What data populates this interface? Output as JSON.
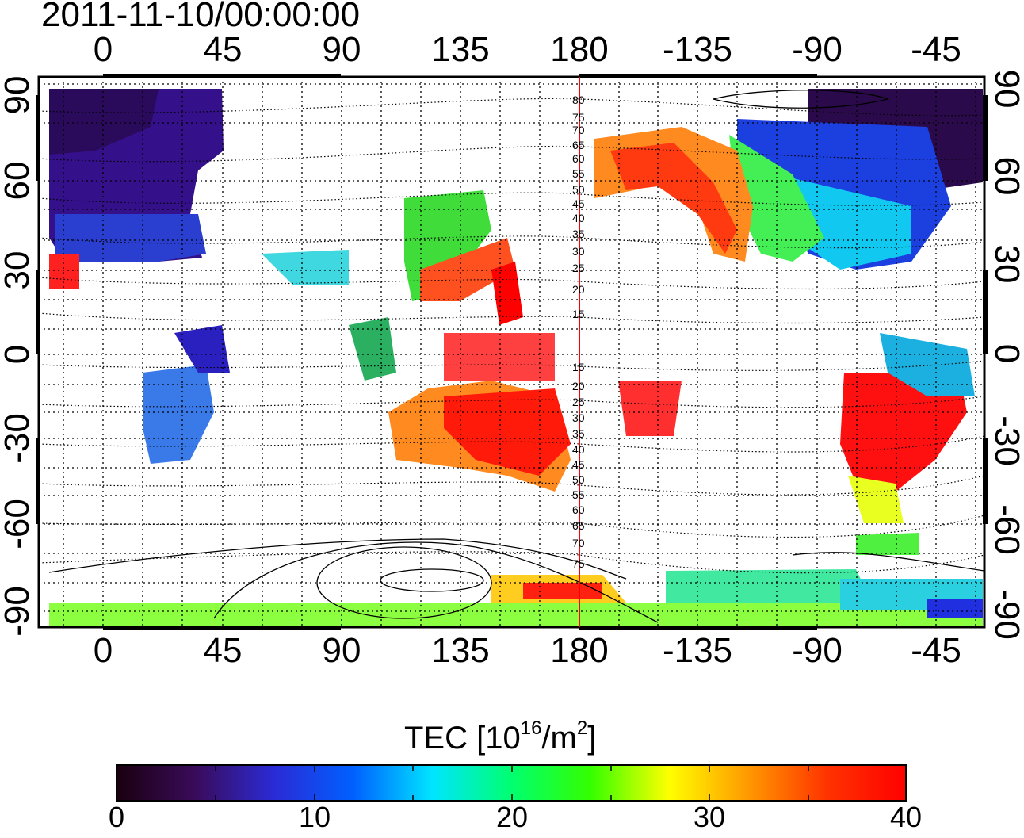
{
  "title": "2011-11-10/00:00:00",
  "map": {
    "lon_ticks": [
      "0",
      "45",
      "90",
      "135",
      "180",
      "-135",
      "-90",
      "-45"
    ],
    "lat_ticks": [
      "90",
      "60",
      "30",
      "0",
      "-30",
      "-60",
      "-90"
    ],
    "contour_labels_north": [
      "80",
      "75",
      "70",
      "65",
      "60",
      "55",
      "50",
      "45",
      "40",
      "35",
      "30",
      "25",
      "20",
      "15"
    ],
    "contour_labels_south": [
      "15",
      "20",
      "25",
      "30",
      "35",
      "40",
      "45",
      "50",
      "55",
      "60",
      "65",
      "70",
      "75"
    ],
    "terminator_color": "#ff0000"
  },
  "colorbar": {
    "label_main": "TEC  [10",
    "label_sup1": "16",
    "label_mid": "/m",
    "label_sup2": "2",
    "label_end": "]",
    "ticks": [
      "0",
      "10",
      "20",
      "30",
      "40"
    ],
    "stops": [
      "#1a000f",
      "#3a0b5a",
      "#2a2bd6",
      "#0060ff",
      "#00e5ff",
      "#00ff70",
      "#33ff00",
      "#ffff00",
      "#ff9900",
      "#ff3300",
      "#ff0000"
    ]
  }
}
